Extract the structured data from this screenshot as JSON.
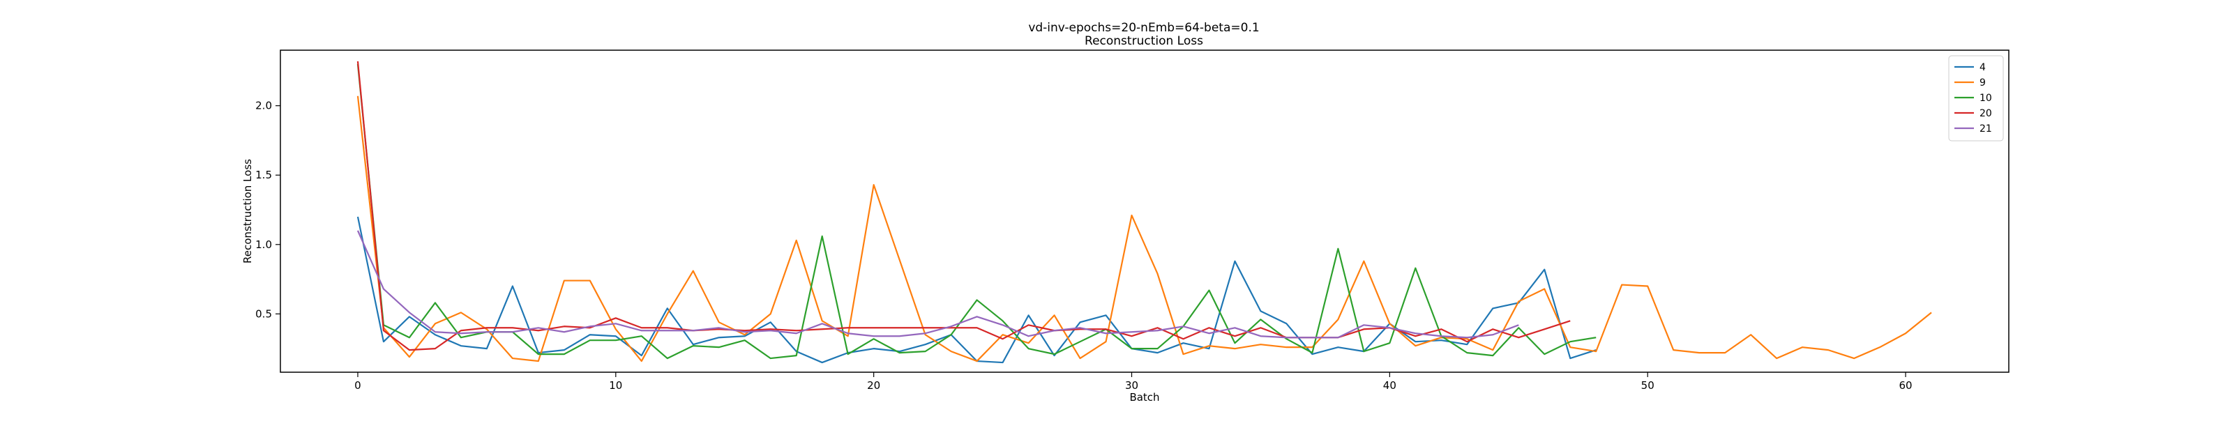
{
  "chart_data": {
    "type": "line",
    "title": "vd-inv-epochs=20-nEmb=64-beta=0.1",
    "subtitle": "Reconstruction Loss",
    "xlabel": "Batch",
    "ylabel": "Reconstruction Loss",
    "xlim": [
      -3,
      64
    ],
    "ylim": [
      0.08,
      2.4
    ],
    "xticks": [
      0,
      10,
      20,
      30,
      40,
      50,
      60
    ],
    "yticks": [
      0.5,
      1.0,
      1.5,
      2.0
    ],
    "xtick_labels": [
      "0",
      "10",
      "20",
      "30",
      "40",
      "50",
      "60"
    ],
    "ytick_labels": [
      "0.5",
      "1.0",
      "1.5",
      "2.0"
    ],
    "grid": false,
    "legend_position": "top-right",
    "series": [
      {
        "name": "4",
        "color": "#1f77b4",
        "x": [
          0,
          1,
          2,
          3,
          4,
          5,
          6,
          7,
          8,
          9,
          10,
          11,
          12,
          13,
          14,
          15,
          16,
          17,
          18,
          19,
          20,
          21,
          22,
          23,
          24,
          25,
          26,
          27,
          28,
          29,
          30,
          31,
          32,
          33,
          34,
          35,
          36,
          37,
          38,
          39,
          40,
          41,
          42,
          43,
          44,
          45,
          46,
          47,
          48
        ],
        "values": [
          1.2,
          0.3,
          0.48,
          0.35,
          0.27,
          0.25,
          0.7,
          0.22,
          0.24,
          0.35,
          0.34,
          0.2,
          0.54,
          0.28,
          0.33,
          0.34,
          0.44,
          0.23,
          0.15,
          0.22,
          0.25,
          0.23,
          0.28,
          0.35,
          0.16,
          0.15,
          0.49,
          0.2,
          0.44,
          0.49,
          0.25,
          0.22,
          0.29,
          0.25,
          0.88,
          0.52,
          0.43,
          0.21,
          0.26,
          0.23,
          0.43,
          0.3,
          0.31,
          0.28,
          0.54,
          0.58,
          0.82,
          0.18,
          0.24
        ]
      },
      {
        "name": "9",
        "color": "#ff7f0e",
        "x": [
          0,
          1,
          2,
          3,
          4,
          5,
          6,
          7,
          8,
          9,
          10,
          11,
          12,
          13,
          14,
          15,
          16,
          17,
          18,
          19,
          20,
          21,
          22,
          23,
          24,
          25,
          26,
          27,
          28,
          29,
          30,
          31,
          32,
          33,
          34,
          35,
          36,
          37,
          38,
          39,
          40,
          41,
          42,
          43,
          44,
          45,
          46,
          47,
          48,
          49,
          50,
          51,
          52,
          53,
          54,
          55,
          56,
          57,
          58,
          59,
          60,
          61
        ],
        "values": [
          2.07,
          0.4,
          0.19,
          0.43,
          0.51,
          0.39,
          0.18,
          0.16,
          0.74,
          0.74,
          0.39,
          0.16,
          0.5,
          0.81,
          0.44,
          0.35,
          0.5,
          1.03,
          0.45,
          0.34,
          1.43,
          0.89,
          0.35,
          0.23,
          0.16,
          0.35,
          0.29,
          0.49,
          0.18,
          0.3,
          1.21,
          0.79,
          0.21,
          0.27,
          0.25,
          0.28,
          0.26,
          0.26,
          0.46,
          0.88,
          0.43,
          0.27,
          0.33,
          0.32,
          0.24,
          0.59,
          0.68,
          0.26,
          0.23,
          0.71,
          0.7,
          0.24,
          0.22,
          0.22,
          0.35,
          0.18,
          0.26,
          0.24,
          0.18,
          0.26,
          0.36,
          0.51
        ]
      },
      {
        "name": "10",
        "color": "#2ca02c",
        "x": [
          0,
          1,
          2,
          3,
          4,
          5,
          6,
          7,
          8,
          9,
          10,
          11,
          12,
          13,
          14,
          15,
          16,
          17,
          18,
          19,
          20,
          21,
          22,
          23,
          24,
          25,
          26,
          27,
          28,
          29,
          30,
          31,
          32,
          33,
          34,
          35,
          36,
          37,
          38,
          39,
          40,
          41,
          42,
          43,
          44,
          45,
          46,
          47,
          48
        ],
        "values": [
          2.3,
          0.42,
          0.33,
          0.58,
          0.33,
          0.37,
          0.37,
          0.21,
          0.21,
          0.31,
          0.31,
          0.34,
          0.18,
          0.27,
          0.26,
          0.31,
          0.18,
          0.2,
          1.06,
          0.21,
          0.32,
          0.22,
          0.23,
          0.35,
          0.6,
          0.45,
          0.25,
          0.21,
          0.3,
          0.39,
          0.25,
          0.25,
          0.41,
          0.67,
          0.29,
          0.46,
          0.32,
          0.22,
          0.97,
          0.23,
          0.29,
          0.83,
          0.34,
          0.22,
          0.2,
          0.4,
          0.21,
          0.3,
          0.33
        ]
      },
      {
        "name": "20",
        "color": "#d62728",
        "x": [
          0,
          1,
          2,
          3,
          4,
          5,
          6,
          7,
          8,
          9,
          10,
          11,
          12,
          13,
          14,
          15,
          16,
          17,
          18,
          19,
          20,
          21,
          22,
          23,
          24,
          25,
          26,
          27,
          28,
          29,
          30,
          31,
          32,
          33,
          34,
          35,
          36,
          37,
          38,
          39,
          40,
          41,
          42,
          43,
          44,
          45,
          46,
          47
        ],
        "values": [
          2.32,
          0.38,
          0.24,
          0.25,
          0.38,
          0.4,
          0.4,
          0.38,
          0.41,
          0.4,
          0.47,
          0.4,
          0.4,
          0.38,
          0.39,
          0.38,
          0.39,
          0.38,
          0.39,
          0.4,
          0.4,
          0.4,
          0.4,
          0.4,
          0.4,
          0.32,
          0.42,
          0.38,
          0.39,
          0.39,
          0.34,
          0.4,
          0.32,
          0.4,
          0.34,
          0.4,
          0.33,
          0.33,
          0.33,
          0.39,
          0.4,
          0.34,
          0.39,
          0.3,
          0.39,
          0.33,
          0.39,
          0.45
        ]
      },
      {
        "name": "21",
        "color": "#9467bd",
        "x": [
          0,
          1,
          2,
          3,
          4,
          5,
          6,
          7,
          8,
          9,
          10,
          11,
          12,
          13,
          14,
          15,
          16,
          17,
          18,
          19,
          20,
          21,
          22,
          23,
          24,
          25,
          26,
          27,
          28,
          29,
          30,
          31,
          32,
          33,
          34,
          35,
          36,
          37,
          38,
          39,
          40,
          41,
          42,
          43,
          44,
          45
        ],
        "values": [
          1.1,
          0.68,
          0.51,
          0.37,
          0.36,
          0.37,
          0.37,
          0.4,
          0.37,
          0.41,
          0.43,
          0.38,
          0.38,
          0.38,
          0.4,
          0.37,
          0.38,
          0.36,
          0.43,
          0.36,
          0.34,
          0.34,
          0.36,
          0.41,
          0.48,
          0.42,
          0.34,
          0.38,
          0.4,
          0.36,
          0.37,
          0.38,
          0.41,
          0.36,
          0.4,
          0.34,
          0.33,
          0.33,
          0.33,
          0.42,
          0.4,
          0.36,
          0.34,
          0.33,
          0.35,
          0.42
        ]
      }
    ]
  }
}
